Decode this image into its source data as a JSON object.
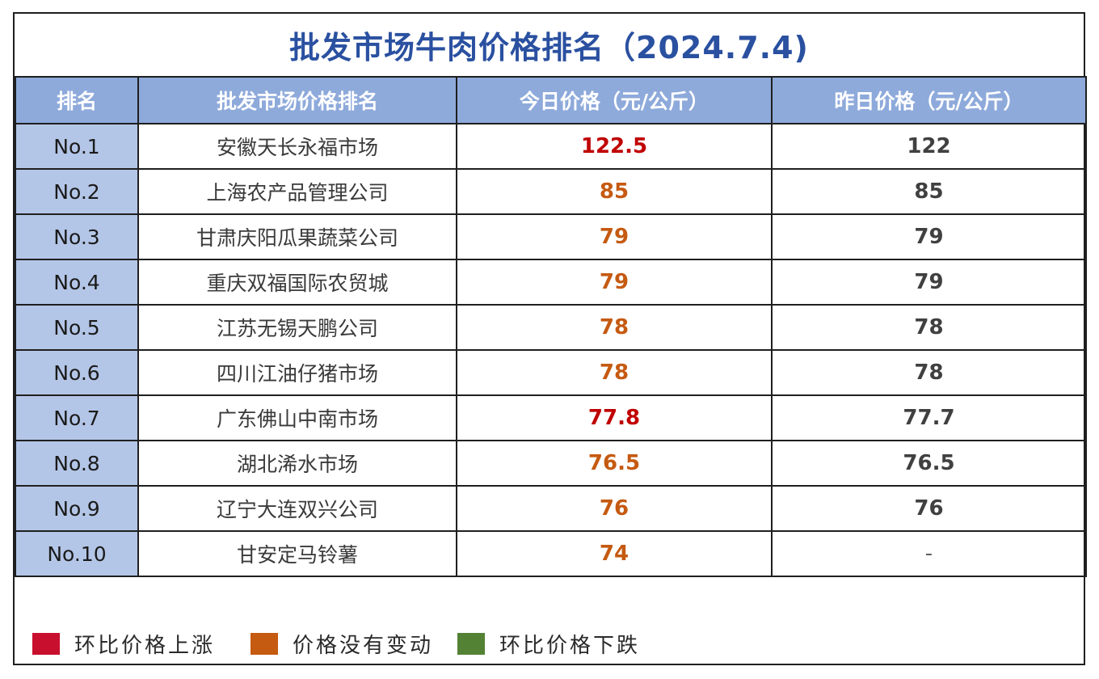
{
  "title": "批发市场牛肉价格排名（2024.7.4)",
  "headers": [
    "排名",
    "批发市场价格排名",
    "今日价格（元/公斤）",
    "昨日价格（元/公斤）"
  ],
  "rows": [
    {
      "rank": "No.1",
      "market": "安徽天长永福市场",
      "today": "122.5",
      "yesterday": "122",
      "status": "up"
    },
    {
      "rank": "No.2",
      "market": "上海农产品管理公司",
      "today": "85",
      "yesterday": "85",
      "status": "same"
    },
    {
      "rank": "No.3",
      "market": "甘肃庆阳瓜果蔬菜公司",
      "today": "79",
      "yesterday": "79",
      "status": "same"
    },
    {
      "rank": "No.4",
      "market": "重庆双福国际农贸城",
      "today": "79",
      "yesterday": "79",
      "status": "same"
    },
    {
      "rank": "No.5",
      "market": "江苏无锡天鹏公司",
      "today": "78",
      "yesterday": "78",
      "status": "same"
    },
    {
      "rank": "No.6",
      "market": "四川江油仔猪市场",
      "today": "78",
      "yesterday": "78",
      "status": "same"
    },
    {
      "rank": "No.7",
      "market": "广东佛山中南市场",
      "today": "77.8",
      "yesterday": "77.7",
      "status": "up"
    },
    {
      "rank": "No.8",
      "market": "湖北浠水市场",
      "today": "76.5",
      "yesterday": "76.5",
      "status": "same"
    },
    {
      "rank": "No.9",
      "market": "辽宁大连双兴公司",
      "today": "76",
      "yesterday": "76",
      "status": "same"
    },
    {
      "rank": "No.10",
      "market": "甘安定马铃薯",
      "today": "74",
      "yesterday": "-",
      "status": "same"
    }
  ],
  "legend": [
    {
      "label": "环比价格上涨",
      "color": "#c8102e"
    },
    {
      "label": "价格没有变动",
      "color": "#c55a11"
    },
    {
      "label": "环比价格下跌",
      "color": "#548235"
    }
  ]
}
